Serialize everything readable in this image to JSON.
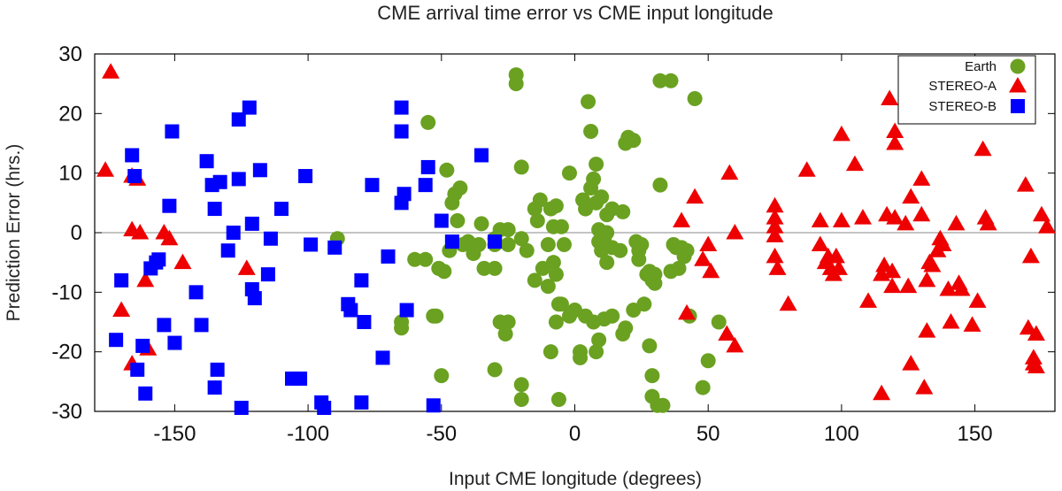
{
  "chart_data": {
    "type": "scatter",
    "title": "CME arrival time error vs CME input longitude",
    "xlabel": "Input CME longitude (degrees)",
    "ylabel": "Prediction Error (hrs.)",
    "xlim": [
      -180,
      180
    ],
    "ylim": [
      -30,
      30
    ],
    "xticks": [
      -150,
      -100,
      -50,
      0,
      50,
      100,
      150
    ],
    "yticks": [
      -30,
      -20,
      -10,
      0,
      10,
      20,
      30
    ],
    "zero_line": true,
    "grid": false,
    "legend_position": "top-right",
    "series": [
      {
        "name": "Earth",
        "marker": "circle",
        "color": "#6aa121",
        "points": [
          [
            -22,
            26.5
          ],
          [
            -22,
            25
          ],
          [
            -55,
            18.5
          ],
          [
            -48,
            10.5
          ],
          [
            -20,
            11
          ],
          [
            -43,
            7.5
          ],
          [
            -45,
            6.5
          ],
          [
            -46,
            5
          ],
          [
            -44,
            2
          ],
          [
            -47,
            -3
          ],
          [
            -42,
            -2
          ],
          [
            -35,
            1.5
          ],
          [
            -36,
            -2
          ],
          [
            -40,
            -1.5
          ],
          [
            -38,
            -3.5
          ],
          [
            -30,
            -1
          ],
          [
            -30,
            -2
          ],
          [
            -28,
            0.5
          ],
          [
            -25,
            0.5
          ],
          [
            -25,
            -2
          ],
          [
            -20,
            -1
          ],
          [
            -15,
            4
          ],
          [
            -13,
            5.5
          ],
          [
            -9,
            4
          ],
          [
            -7,
            4.5
          ],
          [
            -8,
            1
          ],
          [
            -5,
            1
          ],
          [
            -10,
            -2
          ],
          [
            -14,
            2
          ],
          [
            -18,
            -3
          ],
          [
            -12,
            -6
          ],
          [
            -8,
            -5
          ],
          [
            -15,
            -8
          ],
          [
            -10,
            -9
          ],
          [
            -7,
            -7
          ],
          [
            -6,
            -12
          ],
          [
            -5,
            -12
          ],
          [
            0,
            -13
          ],
          [
            -2,
            10
          ],
          [
            3,
            5.5
          ],
          [
            5,
            22
          ],
          [
            6,
            17
          ],
          [
            8,
            11.5
          ],
          [
            7,
            9
          ],
          [
            6,
            7.5
          ],
          [
            4,
            4
          ],
          [
            8,
            5
          ],
          [
            10,
            6
          ],
          [
            12,
            3
          ],
          [
            14,
            4
          ],
          [
            12,
            0
          ],
          [
            9,
            0.5
          ],
          [
            9,
            -1.5
          ],
          [
            11,
            -1
          ],
          [
            10,
            -3
          ],
          [
            12,
            -5
          ],
          [
            14,
            -2.5
          ],
          [
            17,
            -3
          ],
          [
            18,
            3.5
          ],
          [
            20,
            16
          ],
          [
            22,
            15.5
          ],
          [
            19,
            15
          ],
          [
            23,
            -1.5
          ],
          [
            24,
            -3
          ],
          [
            25,
            -2
          ],
          [
            24,
            -4.5
          ],
          [
            28,
            -6.5
          ],
          [
            27,
            -7
          ],
          [
            30,
            -7
          ],
          [
            29,
            -8
          ],
          [
            30,
            -8.5
          ],
          [
            36,
            -6.5
          ],
          [
            39,
            -6
          ],
          [
            37,
            -2
          ],
          [
            38,
            -2.5
          ],
          [
            40,
            -2.5
          ],
          [
            41,
            -4
          ],
          [
            42,
            -3
          ],
          [
            45,
            22.5
          ],
          [
            32,
            25.5
          ],
          [
            36,
            25.5
          ],
          [
            32,
            8
          ],
          [
            -51,
            -6
          ],
          [
            -49,
            -6.5
          ],
          [
            -56,
            -4.5
          ],
          [
            -60,
            -4.5
          ],
          [
            -53,
            -14
          ],
          [
            -52,
            -14
          ],
          [
            -50,
            -24
          ],
          [
            -34,
            -6
          ],
          [
            -30,
            -6
          ],
          [
            -28,
            -15
          ],
          [
            -25,
            -15
          ],
          [
            -26,
            -17
          ],
          [
            -20,
            -25.5
          ],
          [
            -20,
            -28
          ],
          [
            -30,
            -23
          ],
          [
            -7,
            -15
          ],
          [
            -9,
            -20
          ],
          [
            -6,
            -28
          ],
          [
            -4,
            -2
          ],
          [
            -2,
            -14
          ],
          [
            2,
            -20
          ],
          [
            2,
            -21
          ],
          [
            4,
            -14
          ],
          [
            7,
            -15
          ],
          [
            8,
            -20
          ],
          [
            9,
            -18
          ],
          [
            11,
            -14.5
          ],
          [
            14,
            -14
          ],
          [
            18,
            -17
          ],
          [
            19,
            -16
          ],
          [
            22,
            -13
          ],
          [
            26,
            -12
          ],
          [
            28,
            -19
          ],
          [
            29,
            -24
          ],
          [
            29,
            -27.5
          ],
          [
            31,
            -29
          ],
          [
            33,
            -29
          ],
          [
            43,
            -14
          ],
          [
            48,
            -26
          ],
          [
            50,
            -21.5
          ],
          [
            54,
            -15
          ],
          [
            -65,
            -15
          ],
          [
            -65,
            -16
          ],
          [
            -89,
            -1
          ]
        ]
      },
      {
        "name": "STEREO-A",
        "marker": "triangle",
        "color": "#ee0000",
        "points": [
          [
            -174,
            27
          ],
          [
            -176,
            10.5
          ],
          [
            -166,
            9.5
          ],
          [
            -164,
            9
          ],
          [
            -170,
            -13
          ],
          [
            -166,
            0.5
          ],
          [
            -166,
            -22
          ],
          [
            -163,
            0
          ],
          [
            -160,
            -19.5
          ],
          [
            -161,
            -8
          ],
          [
            -154,
            0
          ],
          [
            -152,
            -1
          ],
          [
            -147,
            -5
          ],
          [
            -123,
            -6
          ],
          [
            40,
            2
          ],
          [
            45,
            6
          ],
          [
            50,
            -2
          ],
          [
            51,
            -6.5
          ],
          [
            48,
            -4.5
          ],
          [
            42,
            -13.5
          ],
          [
            58,
            10
          ],
          [
            60,
            0
          ],
          [
            57,
            -17
          ],
          [
            60,
            -19
          ],
          [
            75,
            4.5
          ],
          [
            75,
            2.5
          ],
          [
            75,
            1
          ],
          [
            75,
            -0.5
          ],
          [
            75,
            -4
          ],
          [
            76,
            -6
          ],
          [
            80,
            -12
          ],
          [
            87,
            10.5
          ],
          [
            92,
            2
          ],
          [
            92,
            -2
          ],
          [
            94,
            -5
          ],
          [
            95,
            -4
          ],
          [
            96,
            -6
          ],
          [
            97,
            -7
          ],
          [
            98,
            -4
          ],
          [
            99,
            -6
          ],
          [
            100,
            2
          ],
          [
            100,
            16.5
          ],
          [
            105,
            11.5
          ],
          [
            108,
            2.5
          ],
          [
            110,
            -11.5
          ],
          [
            115,
            -27
          ],
          [
            118,
            22.5
          ],
          [
            120,
            17
          ],
          [
            120,
            15
          ],
          [
            115,
            -7
          ],
          [
            116,
            -5.5
          ],
          [
            119,
            -9
          ],
          [
            119,
            -6.5
          ],
          [
            117,
            3
          ],
          [
            120,
            2.5
          ],
          [
            124,
            1.5
          ],
          [
            125,
            -9
          ],
          [
            126,
            6
          ],
          [
            126,
            -22
          ],
          [
            132,
            -8
          ],
          [
            130,
            9
          ],
          [
            130,
            3
          ],
          [
            131,
            -26
          ],
          [
            132,
            -16.5
          ],
          [
            133,
            -5
          ],
          [
            134,
            -5.5
          ],
          [
            136,
            -3
          ],
          [
            137,
            -1
          ],
          [
            138,
            -2
          ],
          [
            140,
            -9.5
          ],
          [
            141,
            -15
          ],
          [
            143,
            1.5
          ],
          [
            144,
            -8.5
          ],
          [
            145,
            -9.5
          ],
          [
            149,
            -15.5
          ],
          [
            151,
            -11.5
          ],
          [
            153,
            14
          ],
          [
            154,
            2.5
          ],
          [
            155,
            1.5
          ],
          [
            169,
            8
          ],
          [
            170,
            -16
          ],
          [
            171,
            -4
          ],
          [
            172,
            -22
          ],
          [
            172,
            -21
          ],
          [
            173,
            -17
          ],
          [
            173,
            -22.5
          ],
          [
            175,
            3
          ],
          [
            177,
            1
          ]
        ]
      },
      {
        "name": "STEREO-B",
        "marker": "square",
        "color": "#0000ff",
        "points": [
          [
            -170,
            -8
          ],
          [
            -166,
            13
          ],
          [
            -165,
            9.5
          ],
          [
            -172,
            -18
          ],
          [
            -164,
            -23
          ],
          [
            -162,
            -19
          ],
          [
            -161,
            -27
          ],
          [
            -159,
            -6
          ],
          [
            -157,
            -5
          ],
          [
            -156,
            -4.5
          ],
          [
            -154,
            -15.5
          ],
          [
            -152,
            4.5
          ],
          [
            -151,
            17
          ],
          [
            -150,
            -18.5
          ],
          [
            -142,
            -10
          ],
          [
            -140,
            -15.5
          ],
          [
            -138,
            12
          ],
          [
            -136,
            8
          ],
          [
            -135,
            4
          ],
          [
            -135,
            -26
          ],
          [
            -134,
            -23
          ],
          [
            -133,
            8.5
          ],
          [
            -130,
            -3
          ],
          [
            -128,
            0
          ],
          [
            -126,
            19
          ],
          [
            -126,
            9
          ],
          [
            -125,
            -29.5
          ],
          [
            -122,
            21
          ],
          [
            -121,
            -9.5
          ],
          [
            -121,
            1.5
          ],
          [
            -120,
            -11
          ],
          [
            -118,
            10.5
          ],
          [
            -115,
            -7
          ],
          [
            -114,
            -1
          ],
          [
            -110,
            4
          ],
          [
            -106,
            -24.5
          ],
          [
            -103,
            -24.5
          ],
          [
            -101,
            9.5
          ],
          [
            -99,
            -2
          ],
          [
            -95,
            -28.5
          ],
          [
            -94,
            -29.5
          ],
          [
            -90,
            -2.5
          ],
          [
            -85,
            -12
          ],
          [
            -84,
            -13
          ],
          [
            -80,
            -8
          ],
          [
            -80,
            -28.5
          ],
          [
            -79,
            -15
          ],
          [
            -76,
            8
          ],
          [
            -72,
            -21
          ],
          [
            -70,
            -4
          ],
          [
            -65,
            21
          ],
          [
            -65,
            17
          ],
          [
            -65,
            5
          ],
          [
            -64,
            6.5
          ],
          [
            -63,
            -13
          ],
          [
            -56,
            8
          ],
          [
            -55,
            11
          ],
          [
            -53,
            -29
          ],
          [
            -50,
            2
          ],
          [
            -46,
            -1.5
          ],
          [
            -35,
            13
          ],
          [
            -30,
            -1.5
          ]
        ]
      }
    ]
  }
}
